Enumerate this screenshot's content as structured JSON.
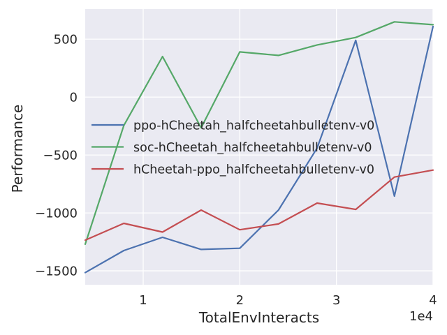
{
  "chart_data": {
    "type": "line",
    "xlabel": "TotalEnvInteracts",
    "ylabel": "Performance",
    "x_offset_label": "1e4",
    "xlim": [
      4000,
      40000
    ],
    "ylim": [
      -1620,
      760
    ],
    "x_ticks": [
      10000,
      20000,
      30000,
      40000
    ],
    "x_tick_labels": [
      "1",
      "2",
      "3",
      "4"
    ],
    "y_ticks": [
      -1500,
      -1000,
      -500,
      0,
      500
    ],
    "y_tick_labels": [
      "−1500",
      "−1000",
      "−500",
      "0",
      "500"
    ],
    "grid": true,
    "legend_position": "center-left",
    "x": [
      4000,
      8000,
      12000,
      16000,
      20000,
      24000,
      28000,
      32000,
      36000,
      40000
    ],
    "series": [
      {
        "name": "ppo-hCheetah_halfcheetahbulletenv-v0",
        "color": "#4c72b0",
        "values": [
          -1515,
          -1325,
          -1210,
          -1315,
          -1305,
          -975,
          -440,
          490,
          -855,
          610
        ]
      },
      {
        "name": "soc-hCheetah_halfcheetahbulletenv-v0",
        "color": "#55a868",
        "values": [
          -1270,
          -245,
          350,
          -265,
          390,
          360,
          450,
          515,
          650,
          625
        ]
      },
      {
        "name": "hCheetah-ppo_halfcheetahbulletenv-v0",
        "color": "#c44e52",
        "values": [
          -1235,
          -1090,
          -1165,
          -975,
          -1145,
          -1095,
          -915,
          -970,
          -690,
          -630
        ]
      }
    ]
  },
  "style": {
    "plot_background": "#eaeaf2",
    "grid_color": "#ffffff",
    "text_color": "#262626"
  }
}
